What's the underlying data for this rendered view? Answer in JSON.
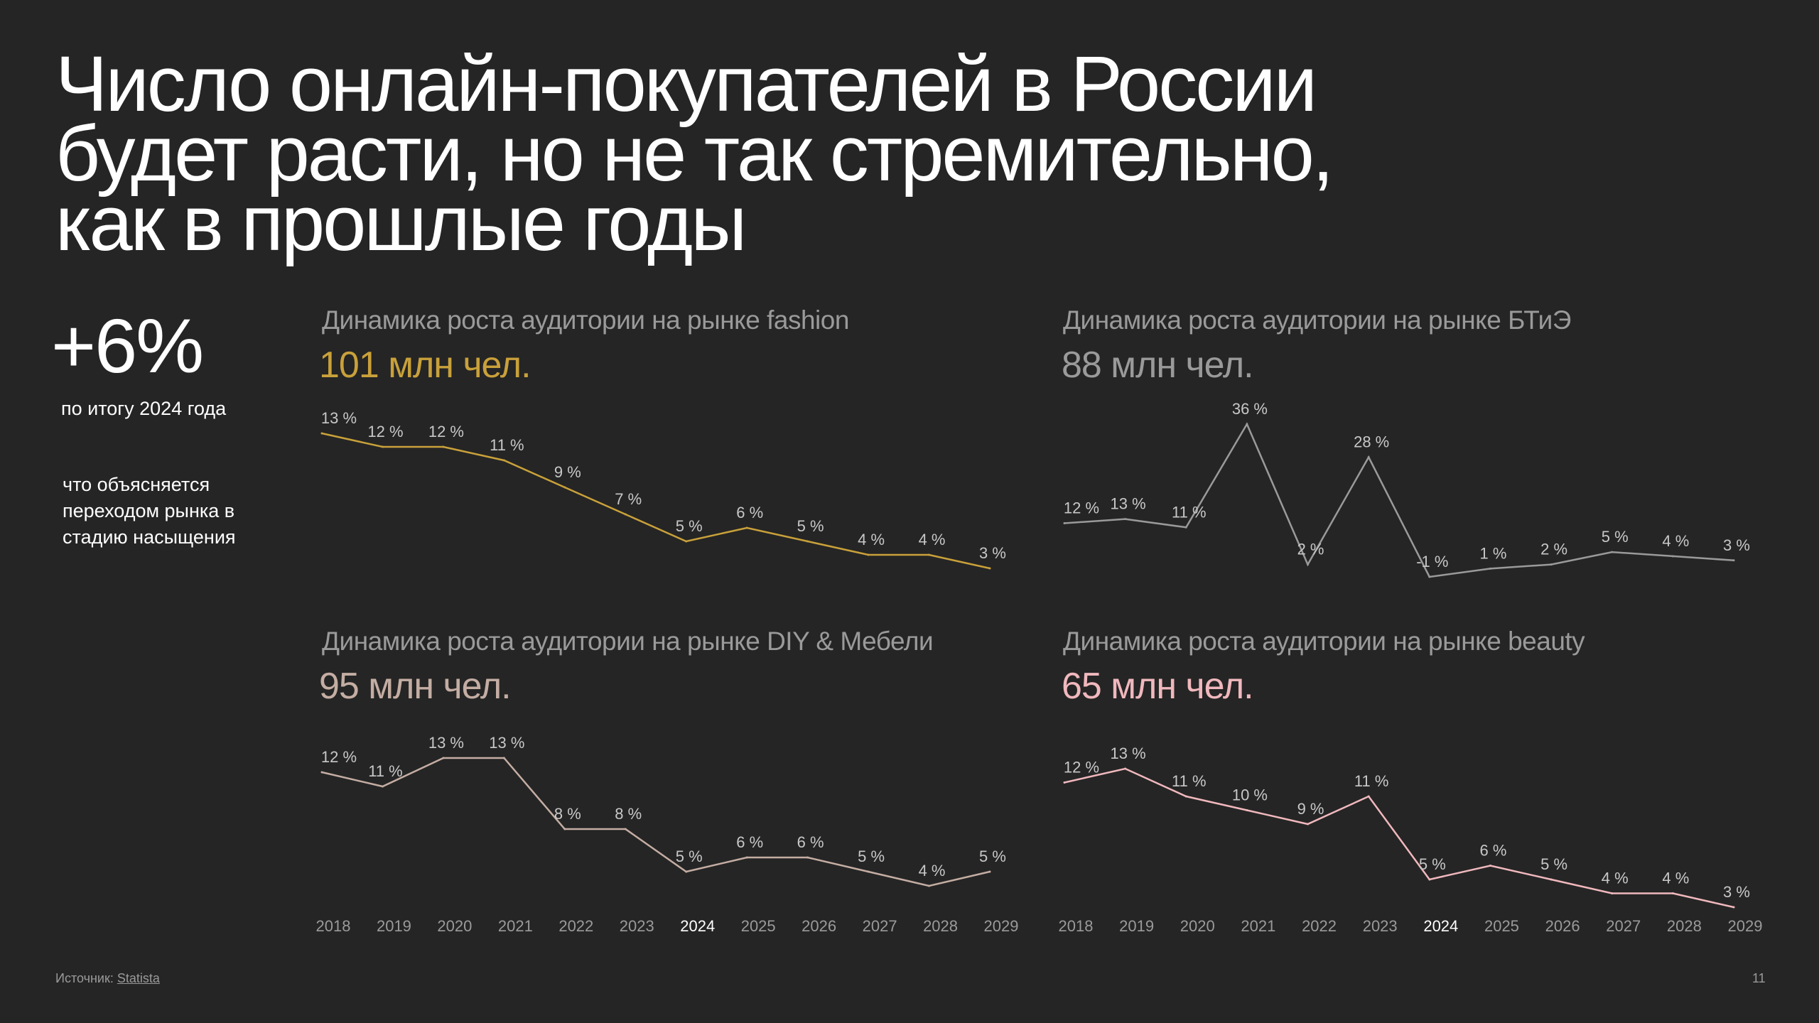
{
  "title_lines": [
    "Число онлайн-покупателей в России",
    "будет расти, но не так стремительно,",
    "как в прошлые годы"
  ],
  "stat": {
    "value": "+6%",
    "caption": "по итогу 2024 года",
    "note": "что объясняется переходом рынка в стадию насыщения"
  },
  "chart_data": [
    {
      "type": "line",
      "title": "Динамика роста аудитории на рынке fashion",
      "subtitle": "101 млн чел.",
      "color": "#c9a13a",
      "x": [
        "2018",
        "2019",
        "2020",
        "2021",
        "2022",
        "2023",
        "2024",
        "2025",
        "2026",
        "2027",
        "2028",
        "2029"
      ],
      "values": [
        13,
        12,
        12,
        11,
        9,
        7,
        5,
        6,
        5,
        4,
        4,
        3
      ],
      "labels": [
        "13 %",
        "12 %",
        "12 %",
        "11 %",
        "9 %",
        "7 %",
        "5 %",
        "6 %",
        "5 %",
        "4 %",
        "4 %",
        "3 %"
      ],
      "x_axis_visible": false
    },
    {
      "type": "line",
      "title": "Динамика роста аудитории на рынке БТиЭ",
      "subtitle": "88 млн чел.",
      "color": "#9a9a9a",
      "x": [
        "2018",
        "2019",
        "2020",
        "2021",
        "2022",
        "2023",
        "2024",
        "2025",
        "2026",
        "2027",
        "2028",
        "2029"
      ],
      "values": [
        12,
        13,
        11,
        36,
        2,
        28,
        -1,
        1,
        2,
        5,
        4,
        3
      ],
      "labels": [
        "12 %",
        "13 %",
        "11 %",
        "36 %",
        "2 %",
        "28 %",
        "-1 %",
        "1 %",
        "2 %",
        "5 %",
        "4 %",
        "3 %"
      ],
      "x_axis_visible": false
    },
    {
      "type": "line",
      "title": "Динамика роста аудитории на рынке DIY & Мебели",
      "subtitle": "95 млн чел.",
      "color": "#c4ada3",
      "x": [
        "2018",
        "2019",
        "2020",
        "2021",
        "2022",
        "2023",
        "2024",
        "2025",
        "2026",
        "2027",
        "2028",
        "2029"
      ],
      "values": [
        12,
        11,
        13,
        13,
        8,
        8,
        5,
        6,
        6,
        5,
        4,
        5
      ],
      "labels": [
        "12 %",
        "11 %",
        "13 %",
        "13 %",
        "8 %",
        "8 %",
        "5 %",
        "6 %",
        "6 %",
        "5 %",
        "4 %",
        "5 %"
      ],
      "x_axis_visible": true,
      "highlight_x": "2024"
    },
    {
      "type": "line",
      "title": "Динамика роста аудитории на рынке beauty",
      "subtitle": "65 млн чел.",
      "color": "#f0b8bd",
      "x": [
        "2018",
        "2019",
        "2020",
        "2021",
        "2022",
        "2023",
        "2024",
        "2025",
        "2026",
        "2027",
        "2028",
        "2029"
      ],
      "values": [
        12,
        13,
        11,
        10,
        9,
        11,
        5,
        6,
        5,
        4,
        4,
        3
      ],
      "labels": [
        "12 %",
        "13 %",
        "11 %",
        "10 %",
        "9 %",
        "11 %",
        "5 %",
        "6 %",
        "5 %",
        "4 %",
        "4 %",
        "3 %"
      ],
      "x_axis_visible": true,
      "highlight_x": "2024"
    }
  ],
  "footer": {
    "source_label": "Источник: ",
    "source_link": "Statista",
    "page_number": "11"
  }
}
